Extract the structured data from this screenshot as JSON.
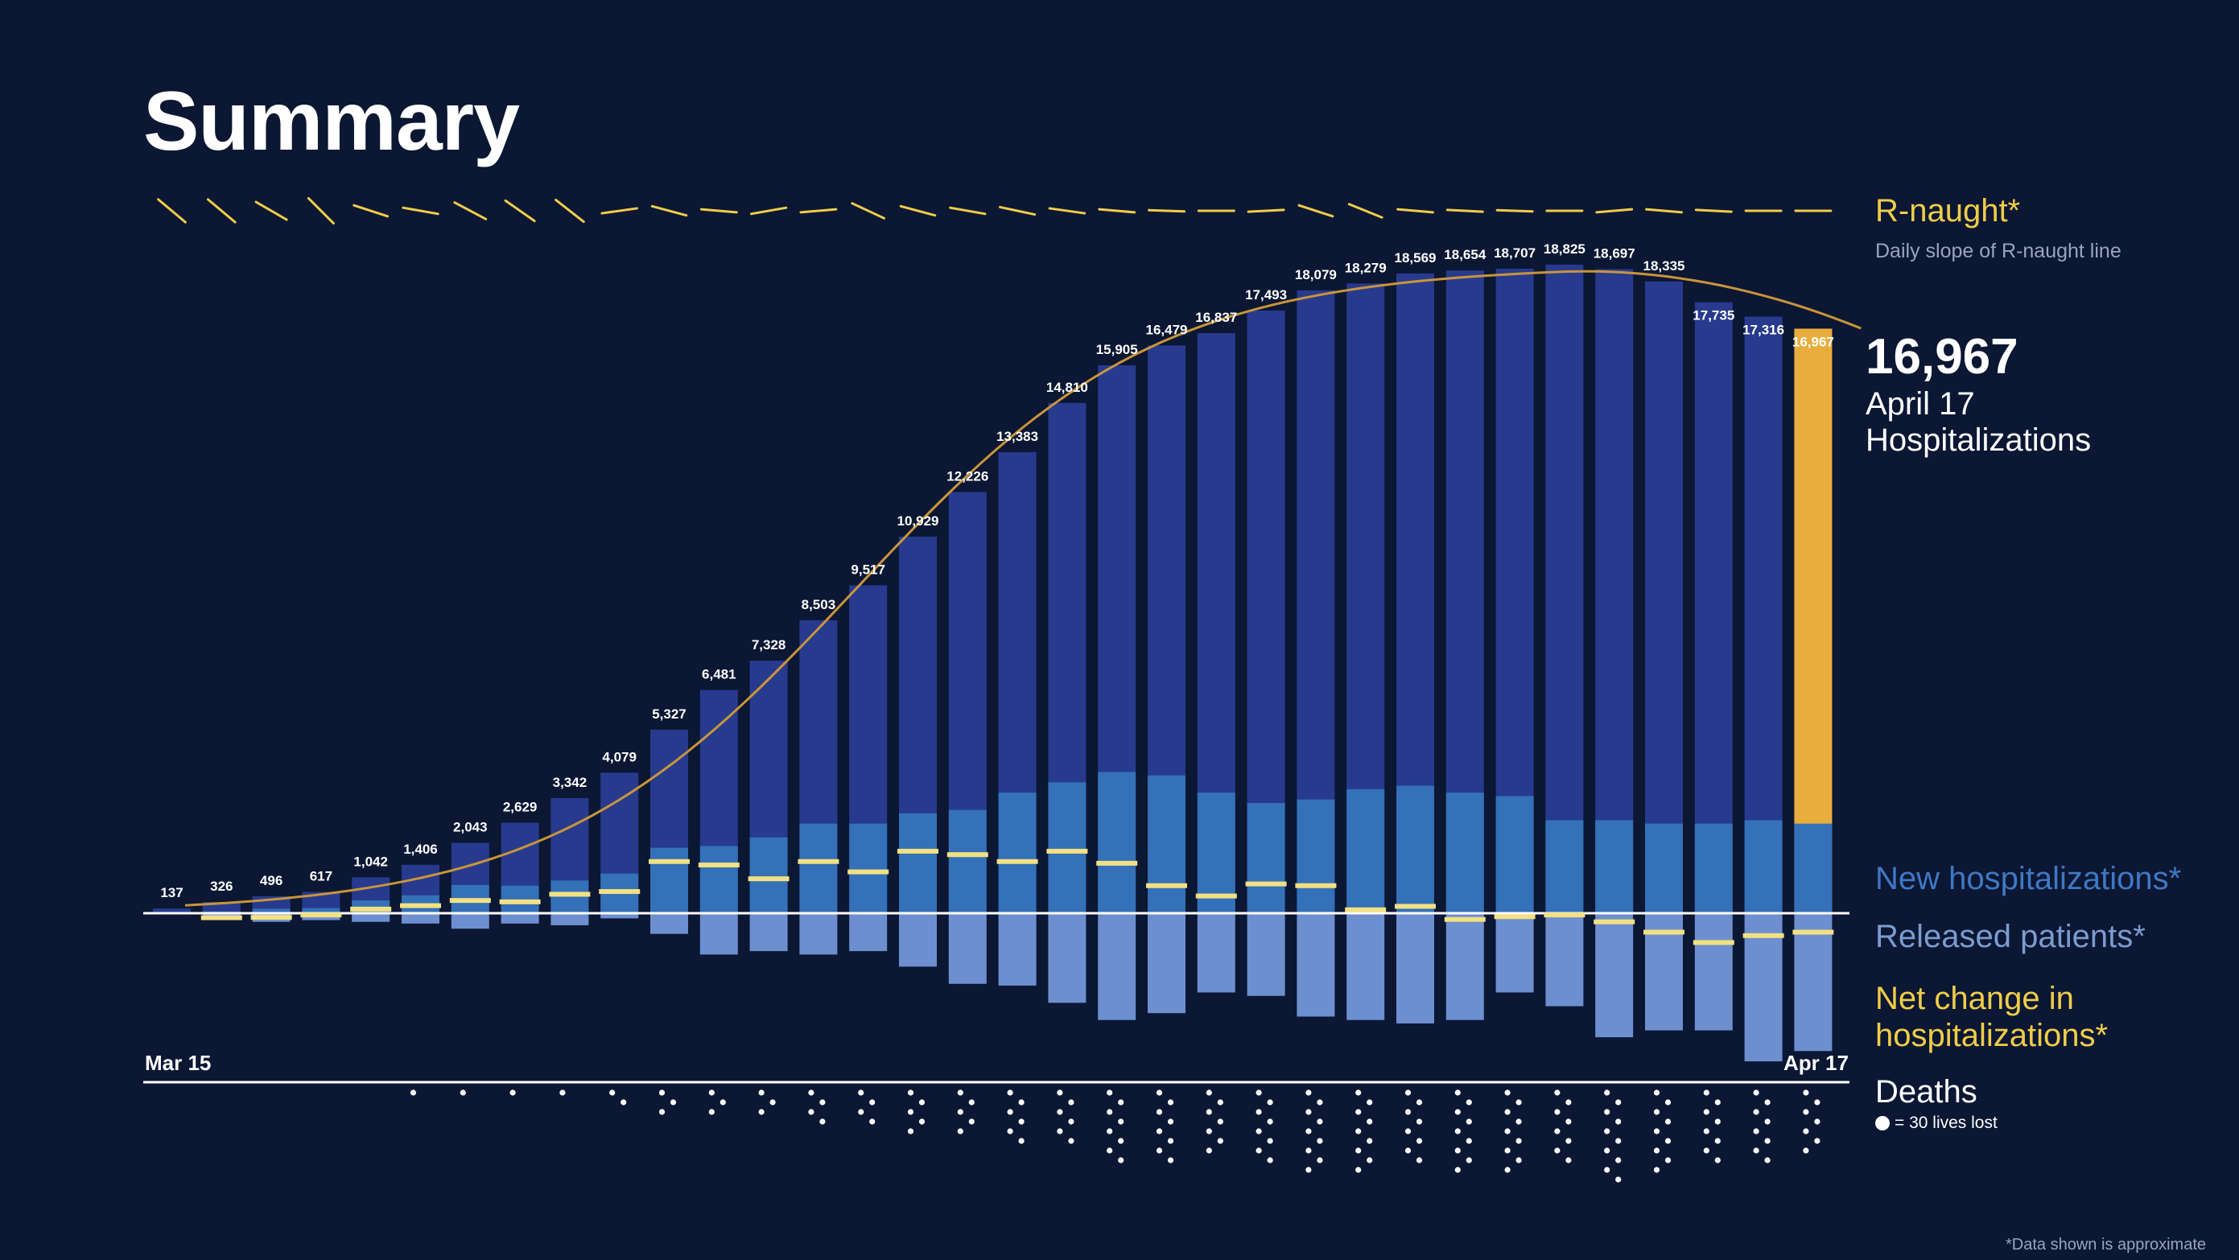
{
  "title": "Summary",
  "legend": {
    "rnaught": "R-naught*",
    "rnaught_sub": "Daily slope of R-naught line",
    "new": "New hospitalizations*",
    "released": "Released patients*",
    "net": "Net change in hospitalizations*",
    "deaths": "Deaths",
    "death_key": "= 30 lives lost"
  },
  "highlight": {
    "value": "16,967",
    "date": "April 17",
    "label": "Hospitalizations"
  },
  "axis": {
    "start": "Mar 15",
    "end": "Apr 17"
  },
  "footnote": "*Data shown is approximate",
  "colors": {
    "background": "#0b1733",
    "hospitalized": "#273a8e",
    "highlight": "#e9ad3e",
    "new": "#3471b8",
    "released": "#6d8fd0",
    "net": "#f2e083",
    "curve": "#c9953a",
    "rnaught": "#f0cd4a",
    "deaths": "#ffffff"
  },
  "chart_data": {
    "type": "bar",
    "categories": [
      "Mar 15",
      "",
      "",
      "",
      "",
      "",
      "",
      "",
      "",
      "",
      "",
      "",
      "",
      "",
      "",
      "",
      "",
      "",
      "",
      "",
      "",
      "",
      "",
      "",
      "",
      "",
      "",
      "",
      "",
      "",
      "",
      "",
      "",
      "Apr 17"
    ],
    "hospitalizations": [
      137,
      326,
      496,
      617,
      1042,
      1406,
      2043,
      2629,
      3342,
      4079,
      5327,
      6481,
      7328,
      8503,
      9517,
      10929,
      12226,
      13383,
      14810,
      15905,
      16479,
      16837,
      17493,
      18079,
      18279,
      18569,
      18654,
      18707,
      18825,
      18697,
      18335,
      17735,
      17316,
      16967
    ],
    "labels": [
      "137",
      "326",
      "496",
      "617",
      "1,042",
      "1,406",
      "2,043",
      "2,629",
      "3,342",
      "4,079",
      "5,327",
      "6,481",
      "7,328",
      "8,503",
      "9,517",
      "10,929",
      "12,226",
      "13,383",
      "14,810",
      "15,905",
      "16,479",
      "16,837",
      "17,493",
      "18,079",
      "18,279",
      "18,569",
      "18,654",
      "18,707",
      "18,825",
      "18,697",
      "18,335",
      "17,735",
      "17,316",
      "16,967"
    ],
    "new_hospitalizations": [
      0,
      50,
      130,
      150,
      370,
      520,
      820,
      800,
      950,
      1150,
      1900,
      1950,
      2200,
      2600,
      2600,
      2900,
      3000,
      3500,
      3800,
      4100,
      4000,
      3500,
      3200,
      3300,
      3600,
      3700,
      3500,
      3400,
      2700,
      2700,
      2600,
      2600,
      2700,
      2600
    ],
    "released_patients": [
      0,
      180,
      250,
      200,
      250,
      300,
      450,
      300,
      350,
      150,
      600,
      1200,
      1100,
      1200,
      1100,
      1550,
      2050,
      2100,
      2600,
      3100,
      2900,
      2300,
      2400,
      3000,
      3100,
      3200,
      3100,
      2300,
      2700,
      3600,
      3400,
      3400,
      4300,
      4000
    ],
    "net_change": [
      0,
      -130,
      -120,
      -50,
      120,
      220,
      370,
      330,
      550,
      630,
      1500,
      1400,
      1000,
      1500,
      1200,
      1800,
      1700,
      1500,
      1800,
      1450,
      800,
      500,
      850,
      800,
      100,
      200,
      -180,
      -100,
      -50,
      -250,
      -550,
      -850,
      -650,
      -550
    ],
    "deaths_units": [
      0,
      0,
      0,
      0,
      0,
      1,
      1,
      1,
      1,
      2,
      3,
      3,
      3,
      4,
      4,
      5,
      5,
      6,
      6,
      8,
      8,
      7,
      8,
      9,
      9,
      8,
      9,
      9,
      8,
      10,
      9,
      8,
      8,
      7
    ],
    "rnaught_slope_deg": [
      40,
      40,
      30,
      45,
      18,
      10,
      28,
      35,
      38,
      -8,
      15,
      5,
      -10,
      -5,
      25,
      15,
      10,
      12,
      8,
      5,
      2,
      0,
      -3,
      18,
      22,
      5,
      3,
      2,
      0,
      -5,
      5,
      3,
      0,
      0
    ],
    "curve_peak": 18800,
    "curve_end": 17000,
    "ylim": [
      -5500,
      19500
    ],
    "xlabel": "",
    "ylabel": ""
  }
}
